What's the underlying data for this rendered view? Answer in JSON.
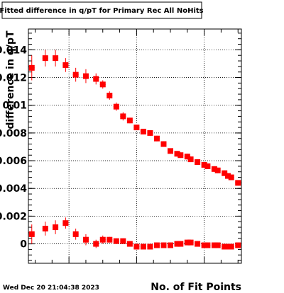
{
  "chart_data": {
    "type": "scatter",
    "title": "Fitted difference in q/pT for Primary Rec All NoHits",
    "xlabel": "No. of Fit Points",
    "ylabel": "difference in q/pT",
    "timestamp": "Wed Dec 20 21:04:38 2023",
    "xlim": [
      8,
      71
    ],
    "ylim": [
      -0.0014,
      0.0155
    ],
    "yticks": [
      0,
      0.002,
      0.004,
      0.006,
      0.008,
      0.01,
      0.012,
      0.014
    ],
    "ytick_labels": [
      "0",
      "0.002",
      "0.004",
      "0.006",
      "0.008",
      "0.01",
      "0.012",
      "0.014"
    ],
    "xgrid": [
      20,
      40,
      60
    ],
    "grid": true,
    "marker_color": "#ff0000",
    "series": [
      {
        "x": [
          9,
          13,
          16,
          19,
          22,
          25,
          28,
          30,
          32,
          34,
          36,
          38,
          40,
          42,
          44,
          46,
          48
        ],
        "y": [
          0.0127,
          0.0134,
          0.0134,
          0.0129,
          0.0122,
          0.0121,
          0.0119,
          0.0115,
          0.0107,
          0.0099,
          0.0092,
          0.0089,
          0.0084,
          0.0081,
          0.008,
          0.0076,
          0.0072
        ],
        "err": [
          0.0009,
          0.0006,
          0.0006,
          0.0005,
          0.0005,
          0.0005,
          0.0004,
          0.0003,
          0.0003,
          0.0003,
          0.0003,
          0.0002,
          0.0002,
          0.0002,
          0.0002,
          0.0002,
          0.0002
        ]
      },
      {
        "x": [
          50,
          52,
          53,
          55,
          56,
          58,
          60,
          61,
          63,
          64,
          66,
          67,
          68,
          70
        ],
        "y": [
          0.0067,
          0.0065,
          0.0064,
          0.0063,
          0.0061,
          0.0059,
          0.0057,
          0.0056,
          0.0054,
          0.0053,
          0.0051,
          0.0049,
          0.0048,
          0.0044
        ],
        "err": [
          0.0002,
          0.0002,
          0.0002,
          0.0002,
          0.0002,
          0.0002,
          0.0002,
          0.0002,
          0.0002,
          0.0002,
          0.0002,
          0.0002,
          0.0002,
          0.0002
        ]
      },
      {
        "x": [
          9,
          13,
          16,
          19,
          22,
          25,
          28,
          30,
          32,
          34,
          36,
          38,
          40,
          42,
          44,
          46,
          48,
          50,
          52,
          53,
          55,
          56,
          58,
          60,
          61,
          63,
          64,
          66,
          67,
          68,
          70
        ],
        "y": [
          0.0007,
          0.0011,
          0.0012,
          0.0015,
          0.0007,
          0.0003,
          0.0,
          0.0003,
          0.0003,
          0.0002,
          0.0002,
          0.0,
          -0.0002,
          -0.0002,
          -0.0002,
          -0.0001,
          -0.0001,
          -0.0001,
          0.0,
          0.0,
          0.0001,
          0.0001,
          0.0,
          -0.0001,
          -0.0001,
          -0.0001,
          -0.0001,
          -0.0002,
          -0.0002,
          -0.0002,
          -0.0001
        ],
        "err": [
          0.0007,
          0.0005,
          0.0005,
          0.0004,
          0.0004,
          0.0004,
          0.0003,
          0.0003,
          0.0002,
          0.0002,
          0.0002,
          0.0002,
          0.0002,
          0.0002,
          0.0002,
          0.0002,
          0.0002,
          0.0002,
          0.0002,
          0.0002,
          0.0002,
          0.0002,
          0.0002,
          0.0002,
          0.0002,
          0.0002,
          0.0002,
          0.0002,
          0.0002,
          0.0002,
          0.0002
        ]
      }
    ]
  }
}
